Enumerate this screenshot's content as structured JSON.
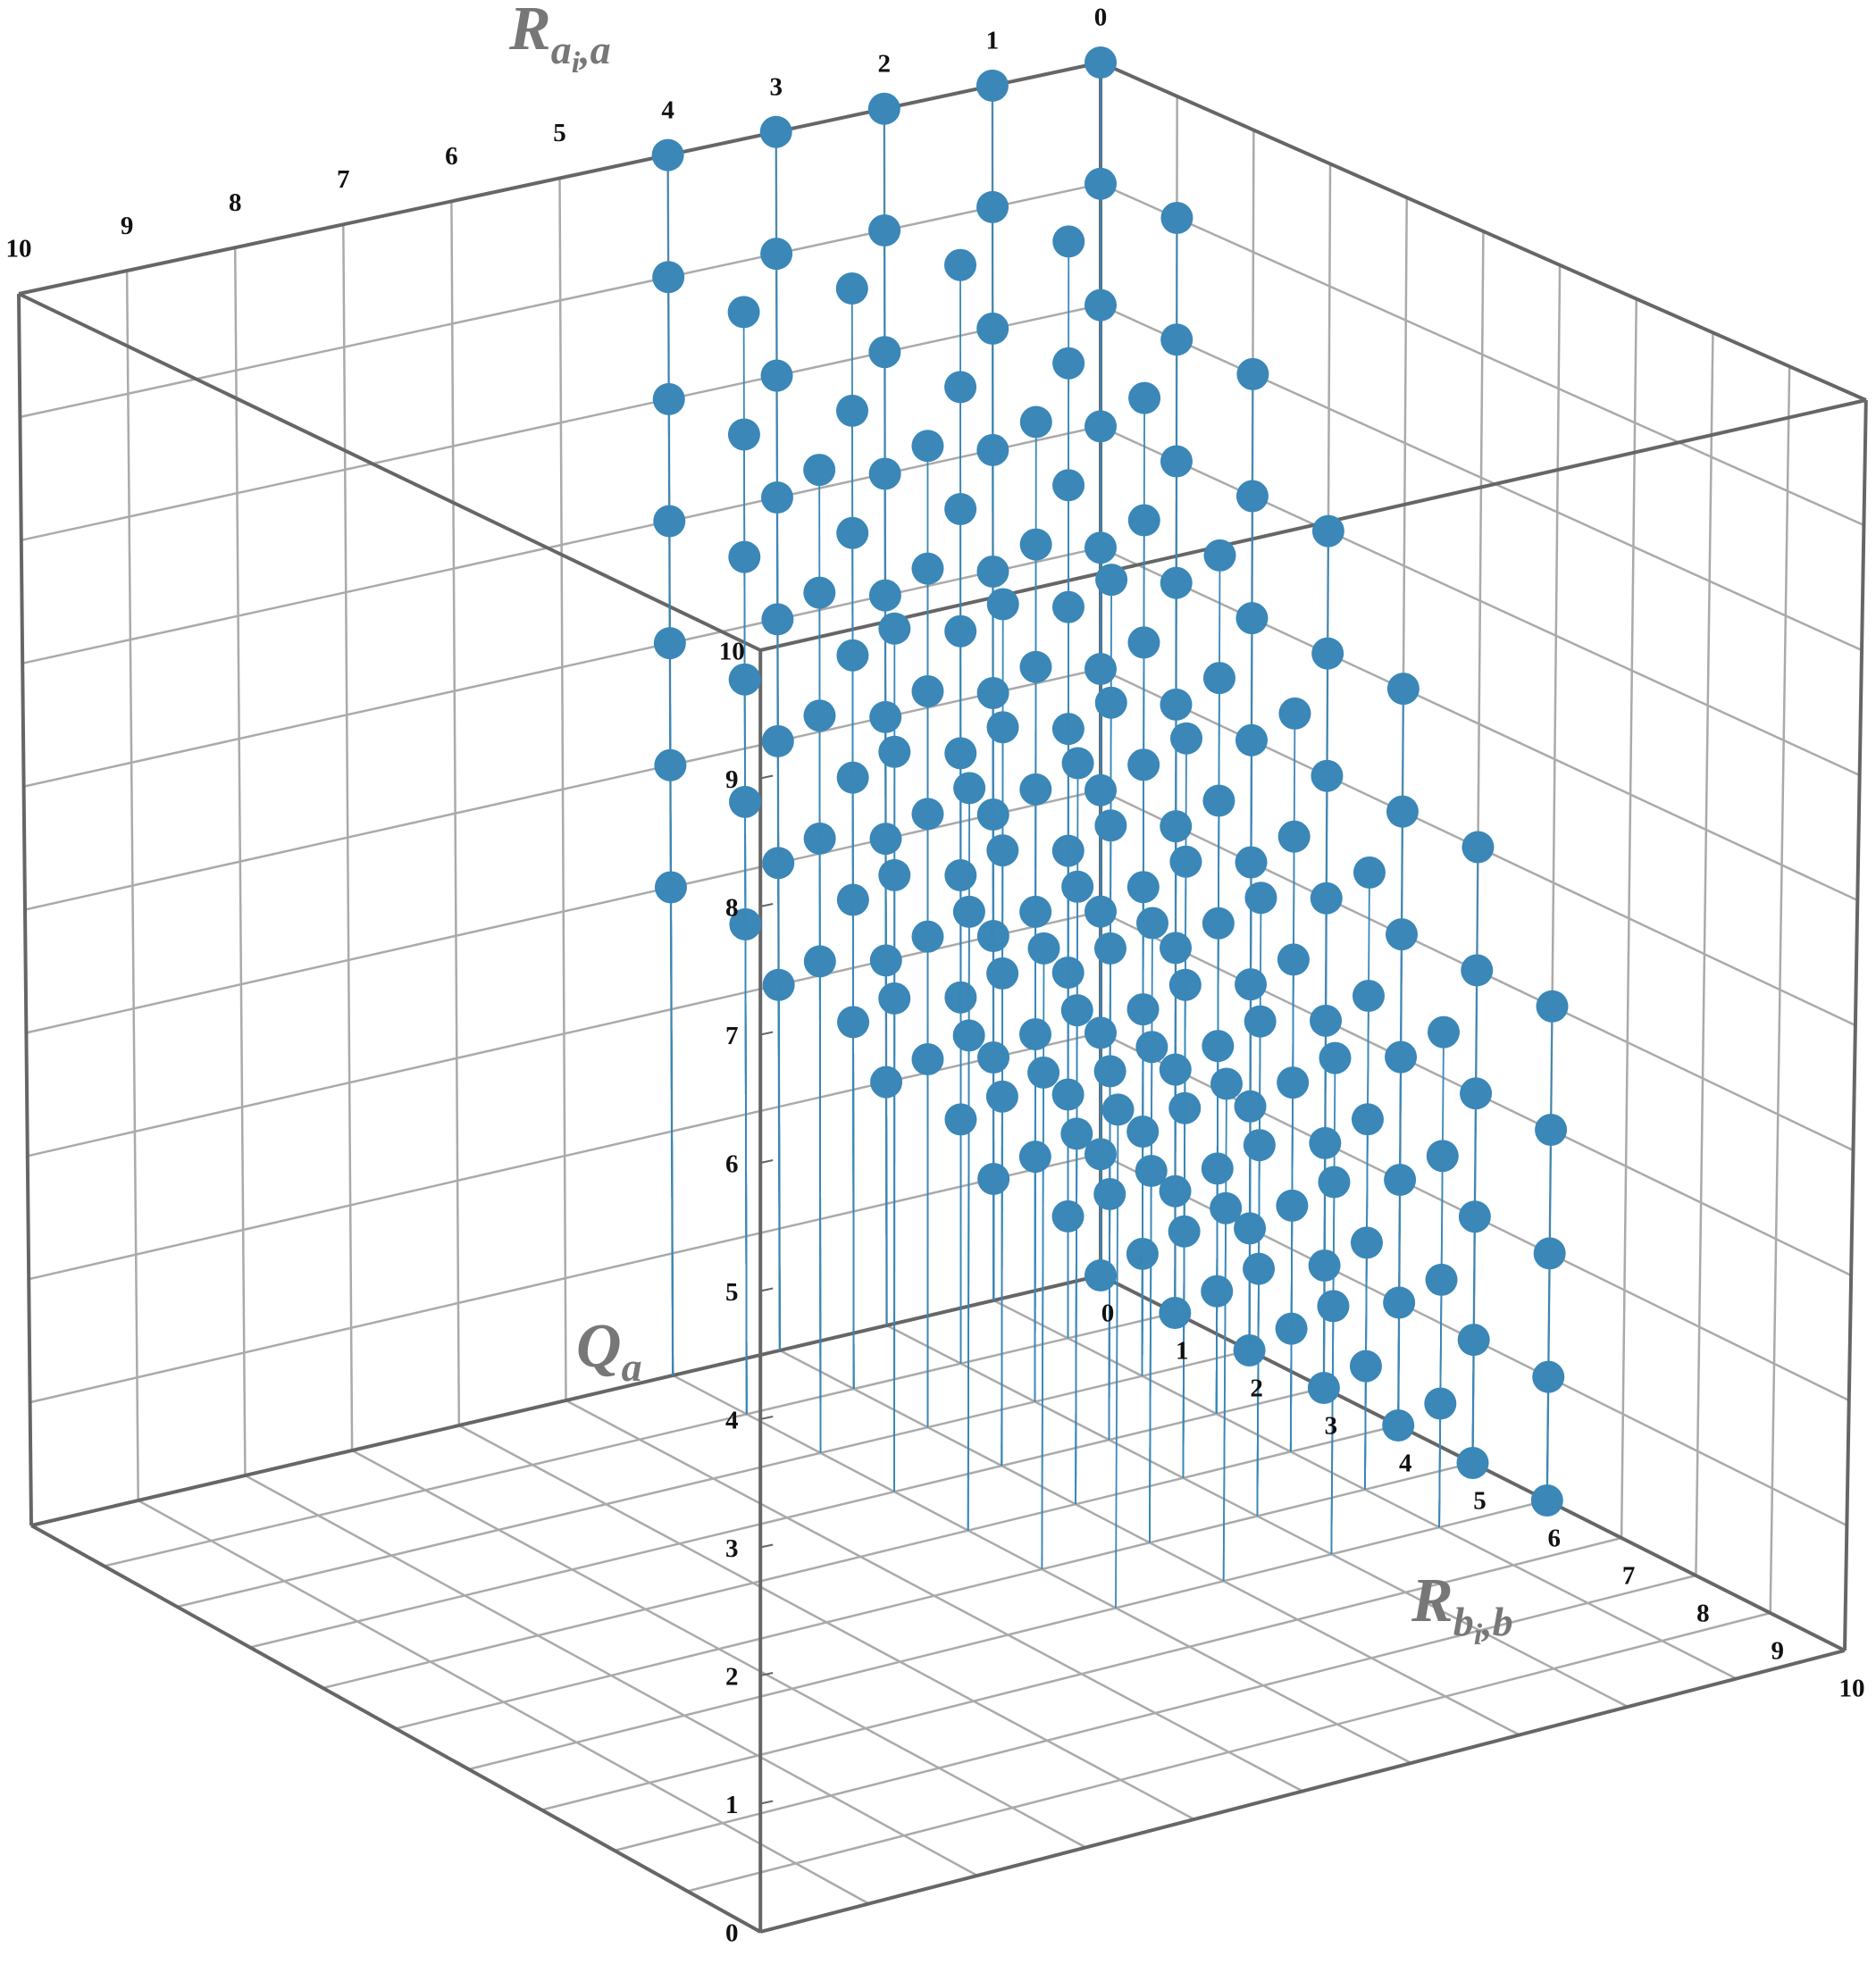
{
  "chart_data": {
    "type": "scatter3d",
    "xlabel": {
      "base": "R",
      "sub": "a",
      "subsub": "i",
      "rest": ",a"
    },
    "ylabel": {
      "base": "R",
      "sub": "b",
      "subsub": "i",
      "rest": ",b"
    },
    "zlabel": {
      "base": "Q",
      "sub": "a"
    },
    "xlim": [
      0,
      10
    ],
    "ylim": [
      0,
      10
    ],
    "zlim": [
      0,
      10
    ],
    "xticks": [
      0,
      1,
      2,
      3,
      4,
      5,
      6,
      7,
      8,
      9,
      10
    ],
    "yticks": [
      0,
      1,
      2,
      3,
      4,
      5,
      6,
      7,
      8,
      9,
      10
    ],
    "zticks": [
      0,
      1,
      2,
      3,
      4,
      5,
      6,
      7,
      8,
      9,
      10
    ],
    "grid": true,
    "color": "#3a87b8",
    "x": [
      0,
      0,
      0,
      0,
      0,
      0,
      0,
      0,
      0,
      0,
      0,
      0,
      0,
      0,
      0,
      0,
      0,
      0,
      0,
      0,
      0,
      0,
      0,
      0,
      0,
      0,
      0,
      0,
      0,
      0,
      0,
      0,
      0,
      0,
      0,
      0,
      0,
      0,
      0,
      0,
      0,
      0,
      0,
      0,
      0,
      0,
      0,
      0,
      0,
      0,
      0,
      0,
      0,
      0,
      0,
      0,
      1,
      1,
      1,
      1,
      1,
      1,
      1,
      1,
      1,
      1,
      1,
      1,
      1,
      1,
      1,
      1,
      1,
      1,
      1,
      1,
      1,
      1,
      1,
      1,
      1,
      1,
      1,
      1,
      1,
      1,
      1,
      1,
      1,
      1,
      1,
      1,
      1,
      1,
      1,
      1,
      1,
      1,
      1,
      1,
      1,
      1,
      1,
      1,
      1,
      2,
      2,
      2,
      2,
      2,
      2,
      2,
      2,
      2,
      2,
      2,
      2,
      2,
      2,
      2,
      2,
      2,
      2,
      2,
      2,
      2,
      2,
      2,
      2,
      2,
      2,
      2,
      2,
      2,
      2,
      2,
      2,
      2,
      2,
      2,
      2,
      2,
      2,
      2,
      2,
      2,
      2,
      3,
      3,
      3,
      3,
      3,
      3,
      3,
      3,
      3,
      3,
      3,
      3,
      3,
      3,
      3,
      3,
      3,
      3,
      3,
      3,
      3,
      3,
      3,
      3,
      3,
      3,
      3,
      3,
      3,
      3,
      3,
      3,
      3,
      3,
      3,
      4,
      4,
      4,
      4,
      4,
      4,
      4,
      4,
      4,
      4,
      4,
      4,
      4,
      4,
      4,
      4,
      4,
      4,
      4,
      4,
      4,
      4,
      4,
      4,
      4,
      4,
      4,
      4
    ],
    "y": [
      0,
      0,
      0,
      0,
      0,
      0,
      0,
      0,
      0,
      0,
      0,
      1,
      1,
      1,
      1,
      1,
      1,
      1,
      1,
      1,
      1,
      2,
      2,
      2,
      2,
      2,
      2,
      2,
      2,
      2,
      3,
      3,
      3,
      3,
      3,
      3,
      3,
      3,
      4,
      4,
      4,
      4,
      4,
      4,
      4,
      5,
      5,
      5,
      5,
      5,
      5,
      6,
      6,
      6,
      6,
      6,
      0,
      0,
      0,
      0,
      0,
      0,
      0,
      0,
      0,
      0,
      1,
      1,
      1,
      1,
      1,
      1,
      1,
      1,
      1,
      2,
      2,
      2,
      2,
      2,
      2,
      2,
      2,
      3,
      3,
      3,
      3,
      3,
      3,
      3,
      4,
      4,
      4,
      4,
      4,
      4,
      5,
      5,
      5,
      5,
      5,
      6,
      6,
      6,
      6,
      0,
      0,
      0,
      0,
      0,
      0,
      0,
      0,
      0,
      1,
      1,
      1,
      1,
      1,
      1,
      1,
      1,
      2,
      2,
      2,
      2,
      2,
      2,
      2,
      3,
      3,
      3,
      3,
      3,
      3,
      4,
      4,
      4,
      4,
      4,
      5,
      5,
      5,
      5,
      6,
      6,
      6,
      0,
      0,
      0,
      0,
      0,
      0,
      0,
      0,
      1,
      1,
      1,
      1,
      1,
      1,
      1,
      2,
      2,
      2,
      2,
      2,
      2,
      3,
      3,
      3,
      3,
      3,
      4,
      4,
      4,
      4,
      5,
      5,
      5,
      6,
      6,
      0,
      0,
      0,
      0,
      0,
      0,
      0,
      1,
      1,
      1,
      1,
      1,
      1,
      2,
      2,
      2,
      2,
      2,
      3,
      3,
      3,
      3,
      4,
      4,
      4,
      5,
      5,
      6
    ],
    "z": [
      0,
      1,
      2,
      3,
      4,
      5,
      6,
      7,
      8,
      9,
      10,
      0,
      1,
      2,
      3,
      4,
      5,
      6,
      7,
      8,
      9,
      0,
      1,
      2,
      3,
      4,
      5,
      6,
      7,
      8,
      0,
      1,
      2,
      3,
      4,
      5,
      6,
      7,
      0,
      1,
      2,
      3,
      4,
      5,
      6,
      0,
      1,
      2,
      3,
      4,
      5,
      0,
      1,
      2,
      3,
      4,
      1,
      2,
      3,
      4,
      5,
      6,
      7,
      8,
      9,
      10,
      1,
      2,
      3,
      4,
      5,
      6,
      7,
      8,
      9,
      1,
      2,
      3,
      4,
      5,
      6,
      7,
      8,
      1,
      2,
      3,
      4,
      5,
      6,
      7,
      1,
      2,
      3,
      4,
      5,
      6,
      1,
      2,
      3,
      4,
      5,
      1,
      2,
      3,
      4,
      2,
      3,
      4,
      5,
      6,
      7,
      8,
      9,
      10,
      2,
      3,
      4,
      5,
      6,
      7,
      8,
      9,
      2,
      3,
      4,
      5,
      6,
      7,
      8,
      2,
      3,
      4,
      5,
      6,
      7,
      2,
      3,
      4,
      5,
      6,
      2,
      3,
      4,
      5,
      2,
      3,
      4,
      3,
      4,
      5,
      6,
      7,
      8,
      9,
      10,
      3,
      4,
      5,
      6,
      7,
      8,
      9,
      3,
      4,
      5,
      6,
      7,
      8,
      3,
      4,
      5,
      6,
      7,
      3,
      4,
      5,
      6,
      3,
      4,
      5,
      3,
      4,
      4,
      5,
      6,
      7,
      8,
      9,
      10,
      4,
      5,
      6,
      7,
      8,
      9,
      4,
      5,
      6,
      7,
      8,
      4,
      5,
      6,
      7,
      4,
      5,
      6,
      4,
      5,
      4
    ]
  }
}
